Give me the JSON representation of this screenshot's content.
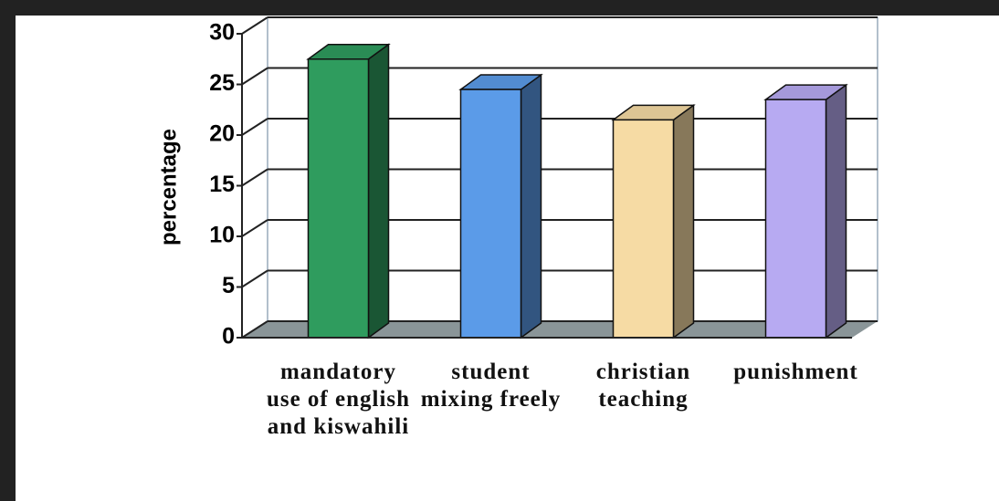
{
  "chart_data": {
    "type": "bar3d",
    "ylabel": "percentage",
    "categories": [
      "mandatory use of english and kiswahili",
      "student mixing freely",
      "christian teaching",
      "punishment"
    ],
    "values": [
      27.5,
      24.5,
      21.5,
      23.5
    ],
    "colors": [
      "#2f9c5e",
      "#5b9be8",
      "#f6dba4",
      "#b7aaf2"
    ],
    "ylim": [
      0,
      30
    ],
    "yticks": [
      0,
      5,
      10,
      15,
      20,
      25,
      30
    ],
    "grid": true
  }
}
